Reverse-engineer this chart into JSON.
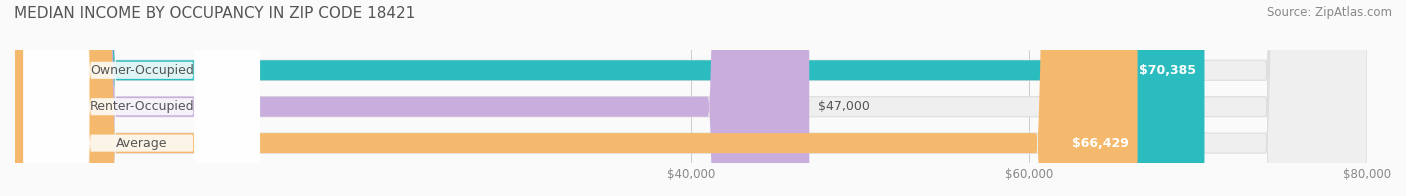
{
  "title": "MEDIAN INCOME BY OCCUPANCY IN ZIP CODE 18421",
  "source": "Source: ZipAtlas.com",
  "categories": [
    "Owner-Occupied",
    "Renter-Occupied",
    "Average"
  ],
  "values": [
    70385,
    47000,
    66429
  ],
  "labels": [
    "$70,385",
    "$47,000",
    "$66,429"
  ],
  "bar_colors": [
    "#2ABCBF",
    "#C9AEDD",
    "#F5B96E"
  ],
  "bar_bg_color": "#EFEFEF",
  "xmin": 0,
  "xmax": 80000,
  "xticks": [
    40000,
    60000,
    80000
  ],
  "xticklabels": [
    "$40,000",
    "$60,000",
    "$80,000"
  ],
  "figsize": [
    14.06,
    1.96
  ],
  "dpi": 100,
  "title_fontsize": 11,
  "source_fontsize": 8.5,
  "label_fontsize": 9,
  "bar_height": 0.55,
  "bar_label_color_dark": "#555555",
  "bar_label_color_light": "#ffffff"
}
